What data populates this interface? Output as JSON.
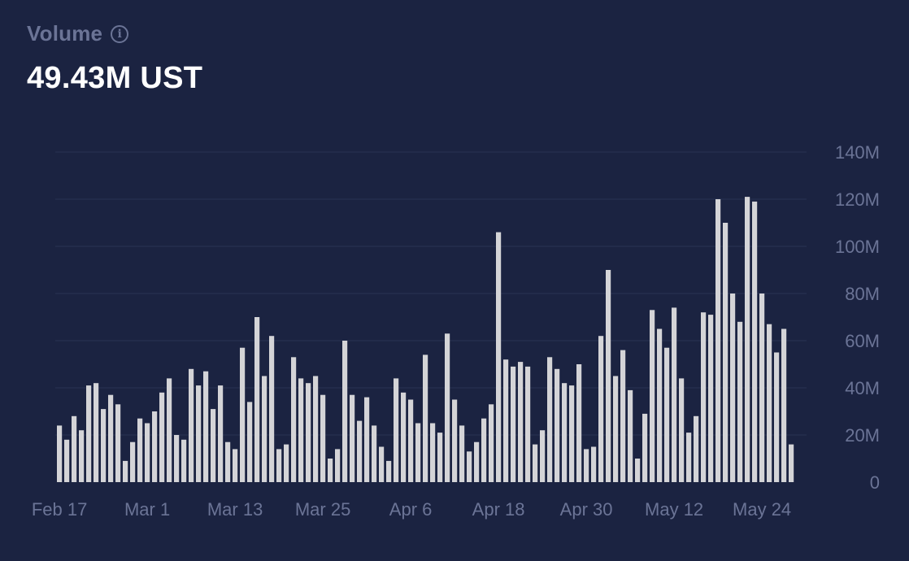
{
  "header": {
    "title": "Volume",
    "info_icon": "info-icon",
    "value": "49.43M UST"
  },
  "colors": {
    "background": "#1b2341",
    "bar": "#d4d4d7",
    "gridline": "#2a3354",
    "axis_text": "#6b7496",
    "value_text": "#ffffff"
  },
  "chart_data": {
    "type": "bar",
    "ylim": [
      0,
      140
    ],
    "y_unit": "M",
    "yticks": [
      "0",
      "20M",
      "40M",
      "60M",
      "80M",
      "100M",
      "120M",
      "140M"
    ],
    "ytick_values": [
      0,
      20,
      40,
      60,
      80,
      100,
      120,
      140
    ],
    "xticks": [
      "Feb 17",
      "Mar 1",
      "Mar 13",
      "Mar 25",
      "Apr 6",
      "Apr 18",
      "Apr 30",
      "May 12",
      "May 24"
    ],
    "xtick_index": [
      0,
      12,
      24,
      36,
      48,
      60,
      72,
      84,
      96
    ],
    "grid": true,
    "values": [
      24,
      18,
      28,
      22,
      41,
      42,
      31,
      37,
      33,
      9,
      17,
      27,
      25,
      30,
      38,
      44,
      20,
      18,
      48,
      41,
      47,
      31,
      41,
      17,
      14,
      57,
      34,
      70,
      45,
      62,
      14,
      16,
      53,
      44,
      42,
      45,
      37,
      10,
      14,
      60,
      37,
      26,
      36,
      24,
      15,
      9,
      44,
      38,
      35,
      25,
      54,
      25,
      21,
      63,
      35,
      24,
      13,
      17,
      27,
      33,
      106,
      52,
      49,
      51,
      49,
      16,
      22,
      53,
      48,
      42,
      41,
      50,
      14,
      15,
      62,
      90,
      45,
      56,
      39,
      10,
      29,
      73,
      65,
      57,
      74,
      44,
      21,
      28,
      72,
      71,
      120,
      110,
      80,
      68,
      121,
      119,
      80,
      67,
      55,
      65,
      16
    ]
  }
}
